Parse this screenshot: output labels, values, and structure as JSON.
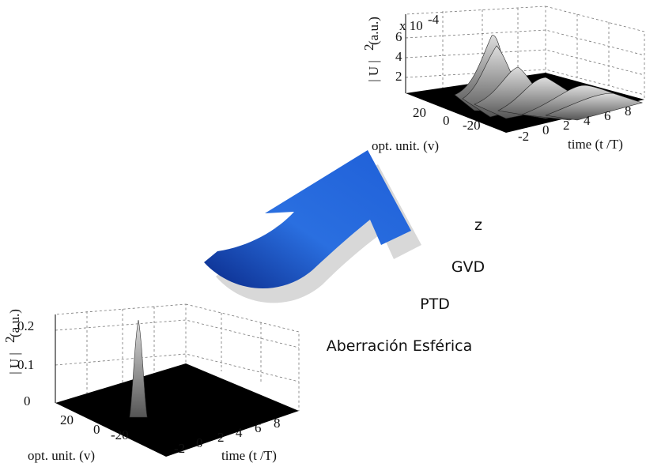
{
  "plots": [
    {
      "z_label": "| U |",
      "z_label_exp": "2",
      "z_label_unit": "(a.u.)",
      "z_scale": "x 10",
      "z_scale_exp": "-4",
      "z_ticks": [
        6,
        4,
        2
      ],
      "v_label": "opt. unit. (v)",
      "v_ticks": [
        20,
        0,
        -20
      ],
      "t_label": "time (t /T)",
      "t_ticks": [
        -2,
        0,
        2,
        4,
        6,
        8
      ]
    },
    {
      "z_label": "| U |",
      "z_label_exp": "2",
      "z_label_unit": "(a.u.)",
      "z_ticks": [
        0.2,
        0.1,
        0
      ],
      "v_label": "opt. unit. (v)",
      "v_ticks": [
        20,
        0,
        -20
      ],
      "t_label": "time (t /T)",
      "t_ticks": [
        -2,
        0,
        2,
        4,
        6,
        8
      ]
    }
  ],
  "arrow_labels": [
    "z",
    "GVD",
    "PTD",
    "Aberración Esférica"
  ]
}
